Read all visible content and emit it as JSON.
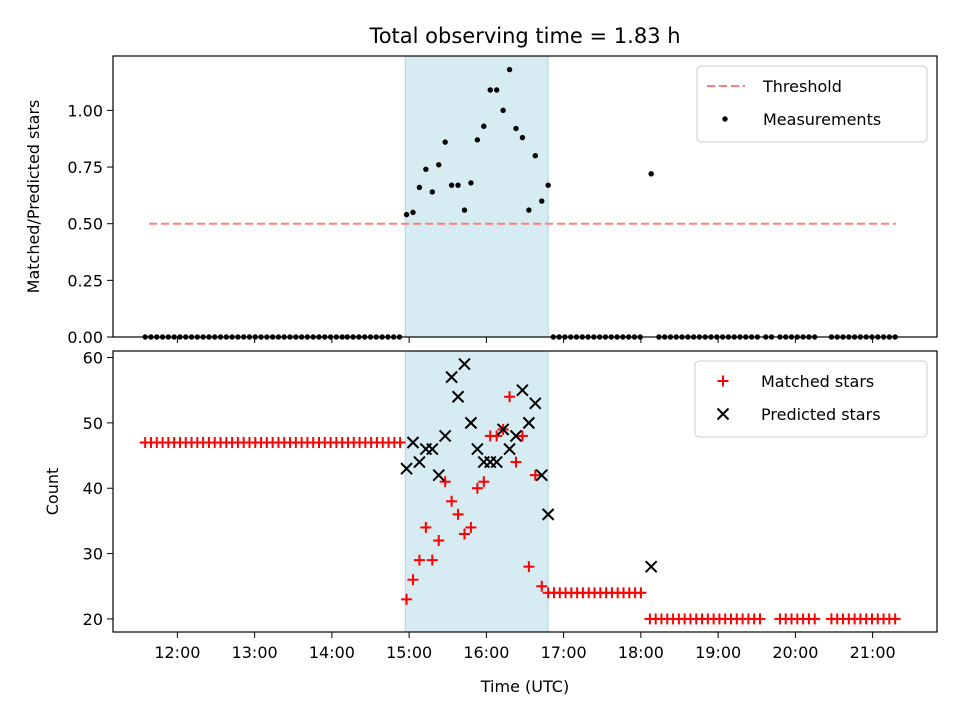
{
  "title": "Total observing time = 1.83 h",
  "colors": {
    "threshold": "#ff7f7f",
    "matched": "#ff0000",
    "predicted": "#000000",
    "span": "#add8e6"
  },
  "chart_data": [
    {
      "type": "scatter",
      "panel": "top",
      "ylabel": "Matched/Predicted stars",
      "xlim": [
        "11:10",
        "21:50"
      ],
      "ylim": [
        0,
        1.24
      ],
      "yticks": [
        "0.00",
        "0.25",
        "0.50",
        "0.75",
        "1.00"
      ],
      "highlight_span": [
        "14:57",
        "16:48"
      ],
      "threshold": {
        "name": "Threshold",
        "y": 0.5,
        "x": [
          "11:38",
          "21:18"
        ]
      },
      "legend": {
        "position": "upper-right",
        "entries": [
          "Threshold",
          "Measurements"
        ]
      },
      "series": [
        {
          "name": "Measurements",
          "marker": "dot",
          "x": [
            "14:58",
            "15:03",
            "15:08",
            "15:13",
            "15:18",
            "15:23",
            "15:28",
            "15:33",
            "15:38",
            "15:43",
            "15:48",
            "15:53",
            "15:58",
            "16:03",
            "16:08",
            "16:13",
            "16:18",
            "16:23",
            "16:28",
            "16:33",
            "16:38",
            "16:43",
            "16:48",
            "18:08"
          ],
          "y": [
            0.54,
            0.55,
            0.66,
            0.74,
            0.64,
            0.76,
            0.86,
            0.67,
            0.67,
            0.56,
            0.68,
            0.87,
            0.93,
            1.09,
            1.09,
            1.0,
            1.18,
            0.92,
            0.88,
            0.56,
            0.8,
            0.6,
            0.67,
            0.72
          ]
        },
        {
          "name": "Measurements (zero level)",
          "marker": "dot",
          "segments": [
            {
              "start": "11:35",
              "end": "14:11",
              "step_min": 4.5,
              "y": 0.0
            },
            {
              "start": "14:12",
              "end": "14:54",
              "step_min": 4.5,
              "y": 0.0
            },
            {
              "start": "16:52",
              "end": "18:03",
              "step_min": 4.5,
              "y": 0.0
            },
            {
              "start": "18:14",
              "end": "19:34",
              "step_min": 4.5,
              "y": 0.0
            },
            {
              "start": "19:37",
              "end": "19:43",
              "step_min": 4.5,
              "y": 0.0
            },
            {
              "start": "19:48",
              "end": "20:18",
              "step_min": 4.5,
              "y": 0.0
            },
            {
              "start": "20:28",
              "end": "21:18",
              "step_min": 4.5,
              "y": 0.0
            }
          ]
        }
      ]
    },
    {
      "type": "scatter",
      "panel": "bottom",
      "xlabel": "Time (UTC)",
      "ylabel": "Count",
      "xlim": [
        "11:10",
        "21:50"
      ],
      "ylim": [
        18,
        61
      ],
      "xticks": [
        "12:00",
        "13:00",
        "14:00",
        "15:00",
        "16:00",
        "17:00",
        "18:00",
        "19:00",
        "20:00",
        "21:00"
      ],
      "yticks": [
        "20",
        "30",
        "40",
        "50",
        "60"
      ],
      "highlight_span": [
        "14:57",
        "16:48"
      ],
      "legend": {
        "position": "upper-right",
        "entries": [
          "Matched stars",
          "Predicted stars"
        ]
      },
      "series": [
        {
          "name": "Matched stars",
          "marker": "plus",
          "x": [
            "14:58",
            "15:03",
            "15:08",
            "15:13",
            "15:18",
            "15:23",
            "15:28",
            "15:33",
            "15:38",
            "15:43",
            "15:48",
            "15:53",
            "15:58",
            "16:03",
            "16:08",
            "16:13",
            "16:18",
            "16:23",
            "16:28",
            "16:33",
            "16:38",
            "16:43"
          ],
          "y": [
            23,
            26,
            29,
            34,
            29,
            32,
            41,
            38,
            36,
            33,
            34,
            40,
            41,
            48,
            48,
            49,
            54,
            44,
            48,
            28,
            42,
            25
          ],
          "segments": [
            {
              "start": "11:35",
              "end": "14:55",
              "step_min": 4.5,
              "y": 47
            },
            {
              "start": "16:48",
              "end": "18:03",
              "step_min": 4.5,
              "y": 24
            },
            {
              "start": "18:07",
              "end": "19:34",
              "step_min": 4.5,
              "y": 20
            },
            {
              "start": "19:48",
              "end": "20:18",
              "step_min": 4.5,
              "y": 20
            },
            {
              "start": "20:28",
              "end": "21:18",
              "step_min": 4.5,
              "y": 20
            }
          ]
        },
        {
          "name": "Predicted stars",
          "marker": "x",
          "x": [
            "14:58",
            "15:03",
            "15:08",
            "15:13",
            "15:18",
            "15:23",
            "15:28",
            "15:33",
            "15:38",
            "15:43",
            "15:48",
            "15:53",
            "15:58",
            "16:03",
            "16:08",
            "16:13",
            "16:18",
            "16:23",
            "16:28",
            "16:33",
            "16:38",
            "16:43",
            "16:48",
            "18:08"
          ],
          "y": [
            43,
            47,
            44,
            46,
            46,
            42,
            48,
            57,
            54,
            59,
            50,
            46,
            44,
            44,
            44,
            49,
            46,
            48,
            55,
            50,
            53,
            42,
            36,
            28
          ]
        }
      ]
    }
  ]
}
